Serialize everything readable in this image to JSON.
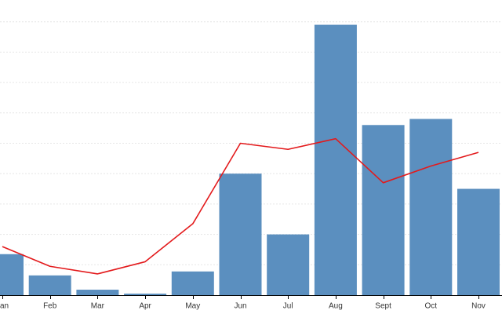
{
  "chart_data": {
    "type": "bar",
    "categories": [
      "Jan",
      "Feb",
      "Mar",
      "Apr",
      "May",
      "Jun",
      "Jul",
      "Aug",
      "Sept",
      "Oct",
      "Nov"
    ],
    "series": [
      {
        "type": "bar",
        "color": "#5b8fbf",
        "values": [
          1.35,
          0.65,
          0.18,
          0.05,
          0.78,
          4.0,
          2.0,
          8.9,
          5.6,
          5.8,
          3.5
        ]
      },
      {
        "type": "line",
        "color": "#e31a1c",
        "values": [
          1.6,
          0.95,
          0.7,
          1.1,
          2.35,
          5.0,
          4.8,
          5.15,
          3.7,
          4.25,
          4.7
        ]
      }
    ],
    "ylim": [
      0,
      9
    ],
    "y_gridlines": [
      1,
      2,
      3,
      4,
      5,
      6,
      7,
      8,
      9
    ],
    "grid": true,
    "title": "",
    "xlabel": "",
    "ylabel": ""
  }
}
